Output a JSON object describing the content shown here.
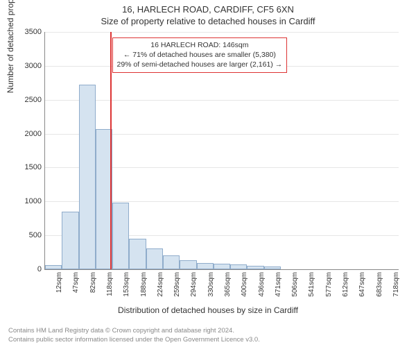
{
  "title_main": "16, HARLECH ROAD, CARDIFF, CF5 6XN",
  "title_sub": "Size of property relative to detached houses in Cardiff",
  "ylabel": "Number of detached properties",
  "xlabel": "Distribution of detached houses by size in Cardiff",
  "chart": {
    "type": "histogram",
    "ylim": [
      0,
      3500
    ],
    "ytick_step": 500,
    "yticks": [
      0,
      500,
      1000,
      1500,
      2000,
      2500,
      3000,
      3500
    ],
    "categories": [
      "12sqm",
      "47sqm",
      "82sqm",
      "118sqm",
      "153sqm",
      "188sqm",
      "224sqm",
      "259sqm",
      "294sqm",
      "330sqm",
      "365sqm",
      "400sqm",
      "436sqm",
      "471sqm",
      "506sqm",
      "541sqm",
      "577sqm",
      "612sqm",
      "647sqm",
      "683sqm",
      "718sqm"
    ],
    "values": [
      60,
      850,
      2720,
      2070,
      980,
      450,
      310,
      200,
      130,
      95,
      85,
      70,
      55,
      40,
      0,
      0,
      0,
      0,
      0,
      0,
      0
    ],
    "bar_fill": "#d5e3f0",
    "bar_stroke": "#8faccb",
    "grid_color": "#e6e6e6",
    "background_color": "#ffffff",
    "axis_color": "#888888",
    "marker_color": "#dd3333",
    "marker_index": 3.85,
    "bar_width": 1.0
  },
  "annotation": {
    "line1": "16 HARLECH ROAD: 146sqm",
    "line2": "← 71% of detached houses are smaller (5,380)",
    "line3": "29% of semi-detached houses are larger (2,161) →",
    "border_color": "#dd3333",
    "font_size": 10.5
  },
  "footer": {
    "line1": "Contains HM Land Registry data © Crown copyright and database right 2024.",
    "line2": "Contains public sector information licensed under the Open Government Licence v3.0.",
    "color": "#888888"
  }
}
